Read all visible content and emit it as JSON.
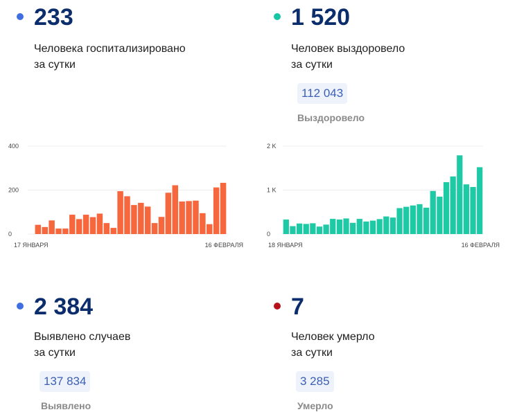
{
  "colors": {
    "blue_dot": "#3f6ee0",
    "teal_dot": "#18c6a6",
    "red_dot": "#b5121b",
    "orange_bar": "#f7673e",
    "teal_bar": "#1ec9a6",
    "big_text": "#0b2d6b"
  },
  "stats": {
    "hospitalized": {
      "value": "233",
      "label": "Человека госпитализировано\nза сутки"
    },
    "recovered": {
      "value": "1 520",
      "label": "Человек выздоровело\nза сутки",
      "total": "112 043",
      "total_label": "Выздоровело"
    },
    "cases": {
      "value": "2 384",
      "label": "Выявлено случаев\nза сутки",
      "total": "137 834",
      "total_label": "Выявлено"
    },
    "deaths": {
      "value": "7",
      "label": "Человек умерло\nза сутки",
      "total": "3 285",
      "total_label": "Умерло"
    }
  },
  "chart_data": [
    {
      "type": "bar",
      "ylim": [
        0,
        400
      ],
      "y_ticks": [
        "400",
        "200",
        "0"
      ],
      "y_tick_values": [
        400,
        200,
        0
      ],
      "x_start_label": "17 ЯНВАРЯ",
      "x_end_label": "16 ФЕВРАЛЯ",
      "color": "#f7673e",
      "values": [
        0,
        42,
        32,
        62,
        25,
        25,
        88,
        68,
        88,
        77,
        93,
        50,
        28,
        195,
        172,
        132,
        142,
        125,
        50,
        78,
        188,
        222,
        148,
        150,
        152,
        95,
        45,
        212,
        233
      ]
    },
    {
      "type": "bar",
      "ylim": [
        0,
        2000
      ],
      "y_ticks": [
        "2 K",
        "1 K",
        "0"
      ],
      "y_tick_values": [
        2000,
        1000,
        0
      ],
      "x_start_label": "18 ЯНВАРЯ",
      "x_end_label": "16 ФЕВРАЛЯ",
      "color": "#1ec9a6",
      "values": [
        330,
        180,
        240,
        230,
        245,
        170,
        215,
        345,
        330,
        355,
        255,
        345,
        285,
        305,
        340,
        400,
        375,
        590,
        620,
        650,
        680,
        600,
        980,
        850,
        1180,
        1310,
        1790,
        1130,
        1070,
        1520
      ]
    }
  ]
}
